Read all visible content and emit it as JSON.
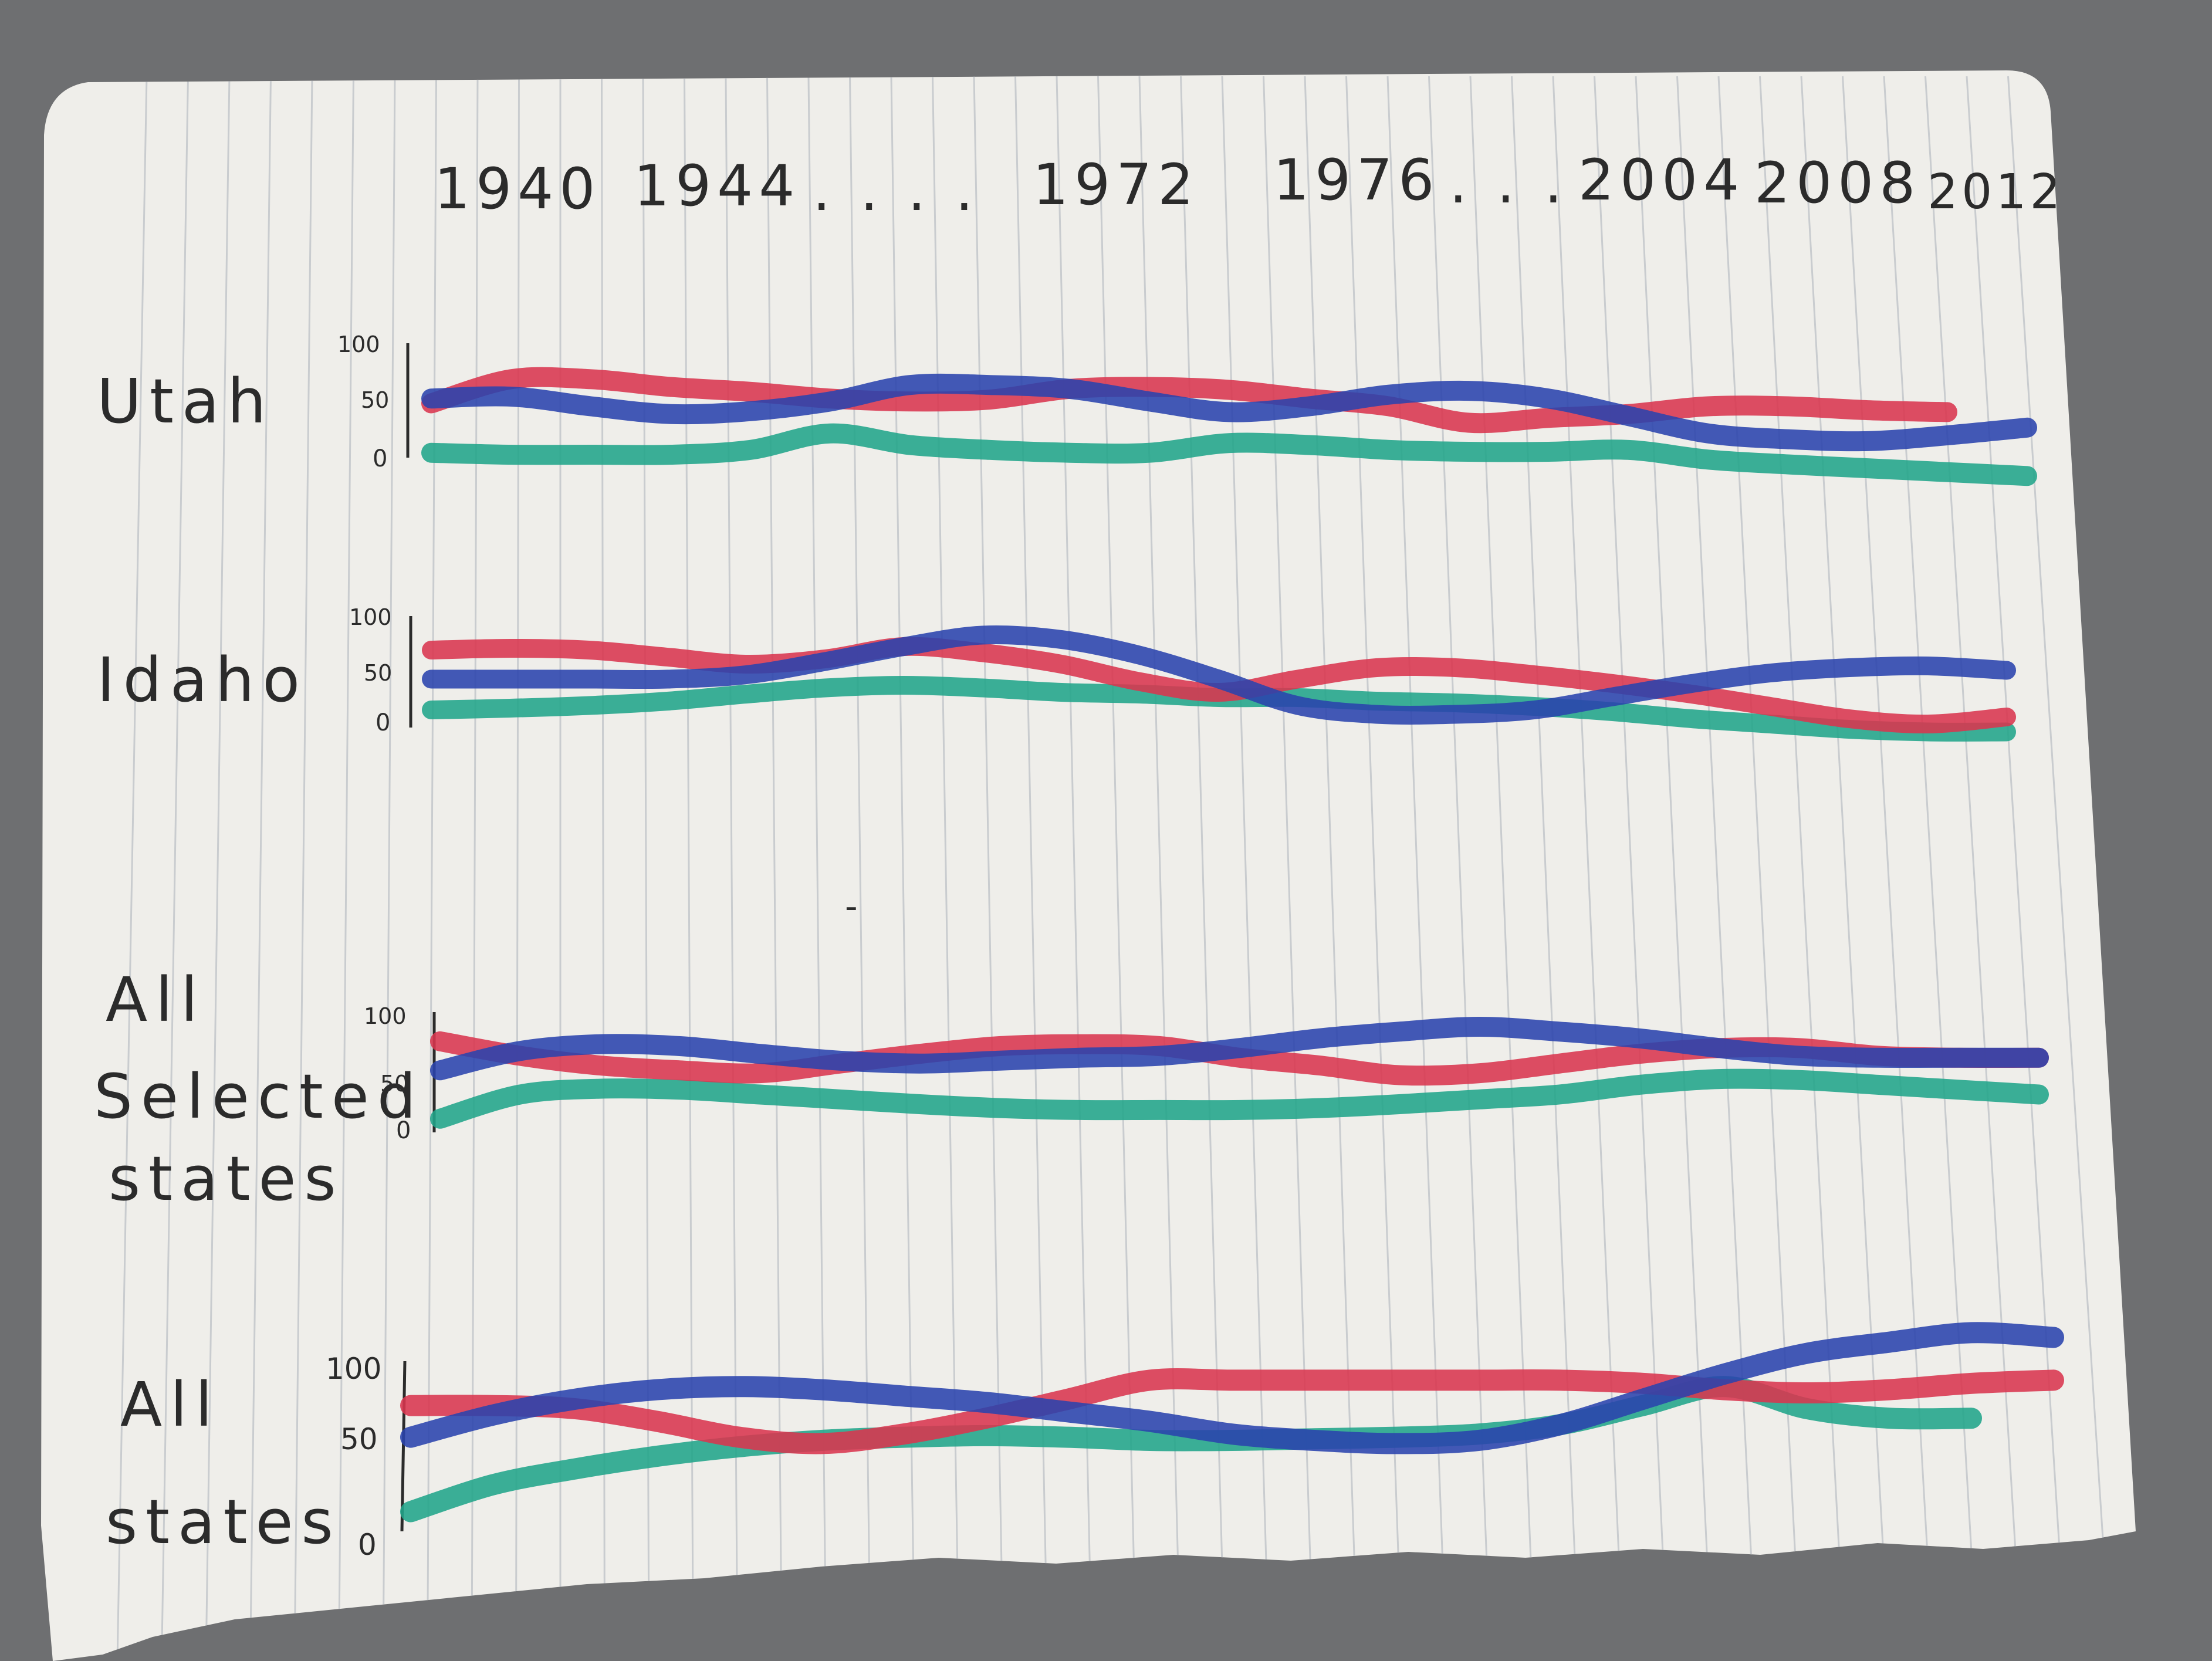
{
  "x_axis": {
    "labels": [
      "1940",
      "1944",
      ". . . .",
      "1972",
      "1976",
      ". . .",
      "2004",
      "2008",
      "2012"
    ]
  },
  "colors": {
    "red": "#d9364e",
    "blue": "#2a43ad",
    "green": "#21a58a",
    "paper": "#efeeea",
    "rule": "#c9cccf",
    "ink": "#2b2b2b",
    "background": "#6e6f71"
  },
  "chart_data": [
    {
      "type": "line",
      "title": "Utah",
      "yticks": [
        "100",
        "50",
        "0"
      ],
      "ylim": [
        0,
        100
      ],
      "x": [
        0,
        0.05,
        0.1,
        0.15,
        0.2,
        0.25,
        0.3,
        0.35,
        0.4,
        0.45,
        0.5,
        0.55,
        0.6,
        0.65,
        0.7,
        0.75,
        0.8,
        0.85,
        0.9,
        0.95,
        1
      ],
      "series": [
        {
          "color_key": "red",
          "values": [
            53,
            78,
            78,
            70,
            65,
            58,
            55,
            57,
            68,
            70,
            67,
            58,
            50,
            33,
            38,
            42,
            50,
            50,
            46,
            44,
            null
          ]
        },
        {
          "color_key": "blue",
          "values": [
            58,
            60,
            50,
            42,
            45,
            55,
            72,
            72,
            68,
            55,
            44,
            50,
            62,
            66,
            58,
            40,
            22,
            16,
            14,
            20,
            28
          ]
        },
        {
          "color_key": "green",
          "values": [
            2,
            0,
            0,
            0,
            5,
            22,
            10,
            5,
            2,
            2,
            12,
            10,
            5,
            3,
            3,
            5,
            -5,
            -10,
            -14,
            -18,
            -22
          ]
        }
      ]
    },
    {
      "type": "line",
      "title": "Idaho",
      "yticks": [
        "100",
        "50",
        "0"
      ],
      "ylim": [
        0,
        100
      ],
      "x": [
        0,
        0.05,
        0.1,
        0.15,
        0.2,
        0.25,
        0.3,
        0.35,
        0.4,
        0.45,
        0.5,
        0.55,
        0.6,
        0.65,
        0.7,
        0.75,
        0.8,
        0.85,
        0.9,
        0.95,
        1
      ],
      "series": [
        {
          "color_key": "red",
          "values": [
            78,
            80,
            78,
            70,
            62,
            68,
            82,
            75,
            62,
            42,
            30,
            45,
            58,
            58,
            50,
            40,
            28,
            14,
            0,
            -6,
            2
          ]
        },
        {
          "color_key": "blue",
          "values": [
            45,
            45,
            45,
            45,
            50,
            65,
            82,
            95,
            90,
            72,
            45,
            15,
            5,
            5,
            10,
            25,
            40,
            52,
            58,
            60,
            55
          ]
        },
        {
          "color_key": "green",
          "values": [
            10,
            12,
            15,
            20,
            28,
            35,
            38,
            35,
            30,
            28,
            24,
            24,
            20,
            18,
            14,
            8,
            0,
            -6,
            -12,
            -15,
            -15
          ]
        }
      ]
    },
    {
      "type": "line",
      "title": "All Selected states",
      "yticks": [
        "100",
        "50",
        "0"
      ],
      "ylim": [
        0,
        100
      ],
      "x": [
        0,
        0.05,
        0.1,
        0.15,
        0.2,
        0.25,
        0.3,
        0.35,
        0.4,
        0.45,
        0.5,
        0.55,
        0.6,
        0.65,
        0.7,
        0.75,
        0.8,
        0.85,
        0.9,
        0.95,
        1
      ],
      "series": [
        {
          "color_key": "red",
          "values": [
            85,
            70,
            60,
            55,
            52,
            62,
            72,
            80,
            82,
            80,
            68,
            60,
            50,
            52,
            62,
            72,
            78,
            78,
            70,
            68,
            68
          ]
        },
        {
          "color_key": "blue",
          "values": [
            55,
            75,
            82,
            80,
            72,
            65,
            62,
            65,
            68,
            70,
            78,
            88,
            95,
            100,
            95,
            88,
            78,
            70,
            68,
            68,
            68
          ]
        },
        {
          "color_key": "green",
          "values": [
            5,
            30,
            36,
            35,
            30,
            25,
            20,
            16,
            14,
            14,
            14,
            16,
            20,
            25,
            30,
            40,
            46,
            45,
            40,
            35,
            30
          ]
        }
      ]
    },
    {
      "type": "line",
      "title": "All states",
      "yticks": [
        "100",
        "50",
        "0"
      ],
      "ylim": [
        0,
        100
      ],
      "x": [
        0,
        0.05,
        0.1,
        0.15,
        0.2,
        0.25,
        0.3,
        0.35,
        0.4,
        0.45,
        0.5,
        0.55,
        0.6,
        0.65,
        0.7,
        0.75,
        0.8,
        0.85,
        0.9,
        0.95,
        1
      ],
      "series": [
        {
          "color_key": "red",
          "values": [
            72,
            72,
            70,
            62,
            52,
            48,
            54,
            64,
            76,
            88,
            88,
            88,
            88,
            88,
            88,
            86,
            82,
            80,
            82,
            86,
            88
          ]
        },
        {
          "color_key": "blue",
          "values": [
            52,
            66,
            76,
            82,
            84,
            82,
            78,
            74,
            68,
            62,
            54,
            50,
            48,
            50,
            60,
            76,
            92,
            105,
            112,
            118,
            115
          ]
        },
        {
          "color_key": "green",
          "values": [
            5,
            22,
            32,
            40,
            46,
            50,
            52,
            53,
            52,
            50,
            50,
            51,
            52,
            54,
            60,
            72,
            84,
            70,
            64,
            64,
            null
          ]
        }
      ]
    }
  ]
}
